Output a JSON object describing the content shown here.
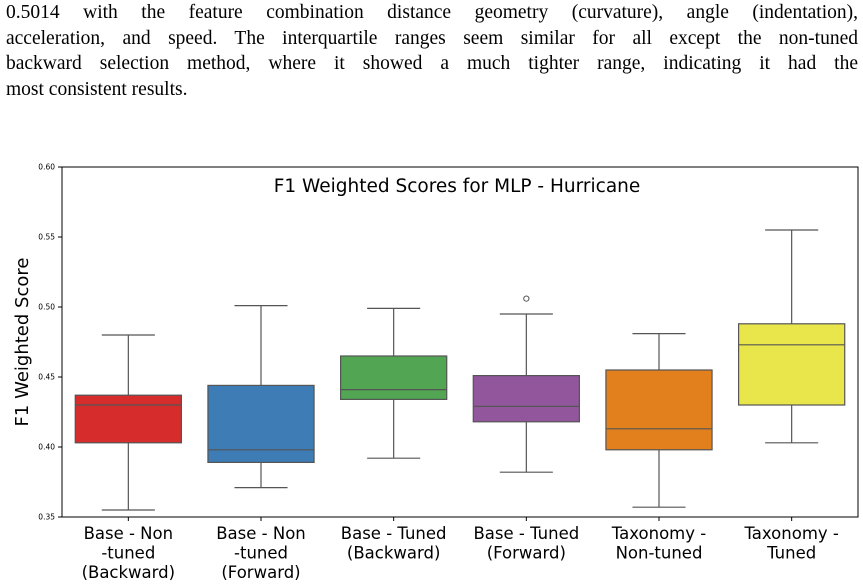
{
  "paragraph": {
    "lines": [
      "0.5014 with the feature combination distance geometry (curvature), angle (indentation),",
      "acceleration, and speed. The interquartile ranges seem similar for all except the non-tuned",
      "backward selection method, where it showed a much tighter range, indicating it had the",
      "most consistent results."
    ]
  },
  "chart_data": {
    "type": "box",
    "title": "F1 Weighted Scores for MLP - Hurricane",
    "xlabel": "",
    "ylabel": "F1 Weighted Score",
    "ylim": [
      0.35,
      0.6
    ],
    "yticks": [
      "0.35",
      "0.40",
      "0.45",
      "0.50",
      "0.55",
      "0.60"
    ],
    "grid": false,
    "categories": [
      [
        "Base - Non",
        "-tuned",
        "(Backward)"
      ],
      [
        "Base - Non",
        "-tuned",
        "(Forward)"
      ],
      [
        "Base - Tuned",
        "(Backward)"
      ],
      [
        "Base - Tuned",
        "(Forward)"
      ],
      [
        "Taxonomy -",
        "Non-tuned"
      ],
      [
        "Taxonomy -",
        "Tuned"
      ]
    ],
    "boxes": [
      {
        "whisker_low": 0.355,
        "q1": 0.403,
        "median": 0.43,
        "q3": 0.437,
        "whisker_high": 0.48,
        "outliers": [],
        "color": "#d62d2c"
      },
      {
        "whisker_low": 0.371,
        "q1": 0.389,
        "median": 0.398,
        "q3": 0.444,
        "whisker_high": 0.501,
        "outliers": [],
        "color": "#3d7cb4"
      },
      {
        "whisker_low": 0.392,
        "q1": 0.434,
        "median": 0.441,
        "q3": 0.465,
        "whisker_high": 0.499,
        "outliers": [],
        "color": "#52a552"
      },
      {
        "whisker_low": 0.382,
        "q1": 0.418,
        "median": 0.429,
        "q3": 0.451,
        "whisker_high": 0.495,
        "outliers": [
          0.506
        ],
        "color": "#91569b"
      },
      {
        "whisker_low": 0.357,
        "q1": 0.398,
        "median": 0.413,
        "q3": 0.455,
        "whisker_high": 0.481,
        "outliers": [],
        "color": "#e2801e"
      },
      {
        "whisker_low": 0.403,
        "q1": 0.43,
        "median": 0.473,
        "q3": 0.488,
        "whisker_high": 0.555,
        "outliers": [],
        "color": "#e8e64a"
      }
    ]
  }
}
